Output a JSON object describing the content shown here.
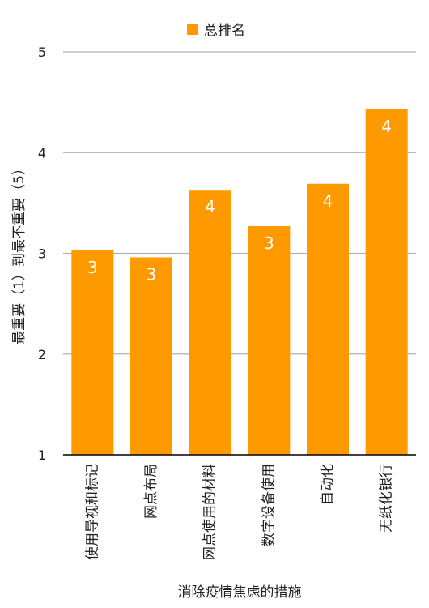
{
  "chart_data": {
    "type": "bar",
    "categories": [
      "使用导视和标记",
      "网点布局",
      "网点使用的材料",
      "数字设备使用",
      "自动化",
      "无纸化银行"
    ],
    "series": [
      {
        "name": "总排名",
        "values": [
          3.03,
          2.96,
          3.63,
          3.27,
          3.69,
          4.43
        ],
        "data_labels": [
          "3",
          "3",
          "4",
          "3",
          "4",
          "4"
        ]
      }
    ],
    "title": "",
    "xlabel": "消除疫情焦虑的措施",
    "ylabel": "最重要（1）到最不重要（5）",
    "ylim": [
      1,
      5
    ],
    "yticks": [
      "1",
      "2",
      "3",
      "4",
      "5"
    ],
    "grid": true,
    "legend": "top-center",
    "colors": {
      "bar": "#FF9900",
      "grid": "#b3b3b3",
      "axis": "#000000"
    }
  }
}
